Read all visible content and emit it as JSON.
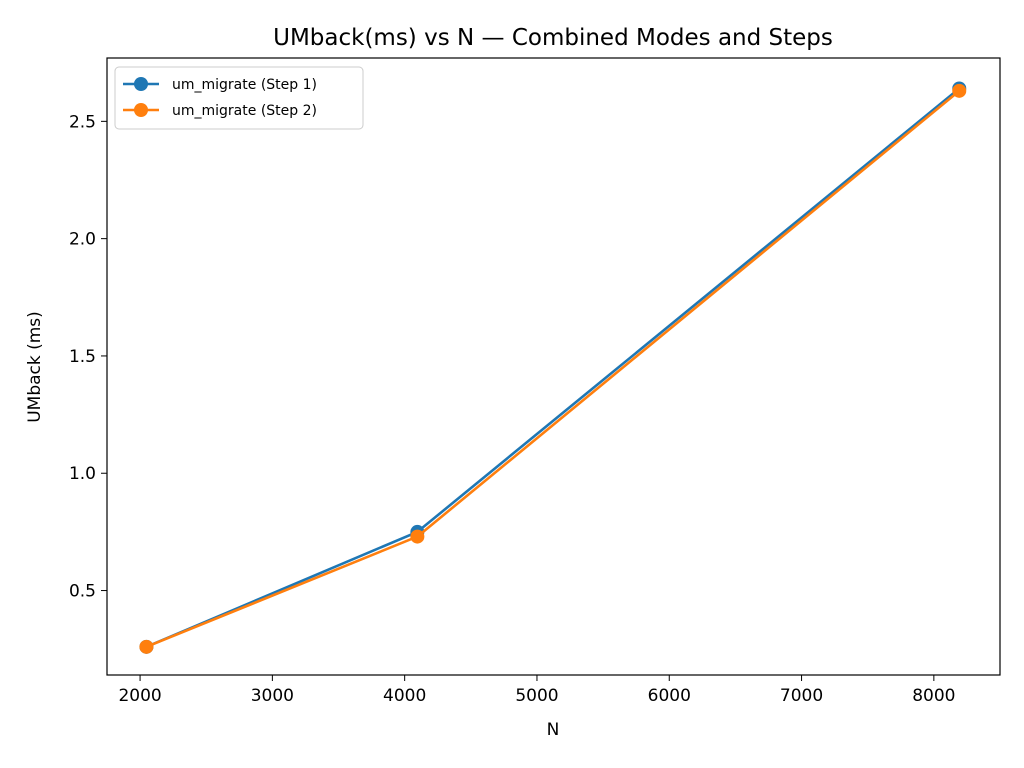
{
  "chart_data": {
    "type": "line",
    "title": "UMback(ms) vs N — Combined Modes and Steps",
    "xlabel": "N",
    "ylabel": "UMback (ms)",
    "xlim": [
      1750,
      8500
    ],
    "ylim": [
      0.14,
      2.77
    ],
    "xticks": [
      2000,
      3000,
      4000,
      5000,
      6000,
      7000,
      8000
    ],
    "yticks": [
      0.5,
      1.0,
      1.5,
      2.0,
      2.5
    ],
    "xtick_labels": [
      "2000",
      "3000",
      "4000",
      "5000",
      "6000",
      "7000",
      "8000"
    ],
    "ytick_labels": [
      "0.5",
      "1.0",
      "1.5",
      "2.0",
      "2.5"
    ],
    "grid": false,
    "legend_position": "top-left",
    "x": [
      2048,
      4096,
      8192
    ],
    "series": [
      {
        "name": "um_migrate (Step 1)",
        "color": "#1f77b4",
        "values": [
          0.26,
          0.75,
          2.64
        ]
      },
      {
        "name": "um_migrate (Step 2)",
        "color": "#ff7f0e",
        "values": [
          0.26,
          0.73,
          2.63
        ]
      }
    ]
  }
}
